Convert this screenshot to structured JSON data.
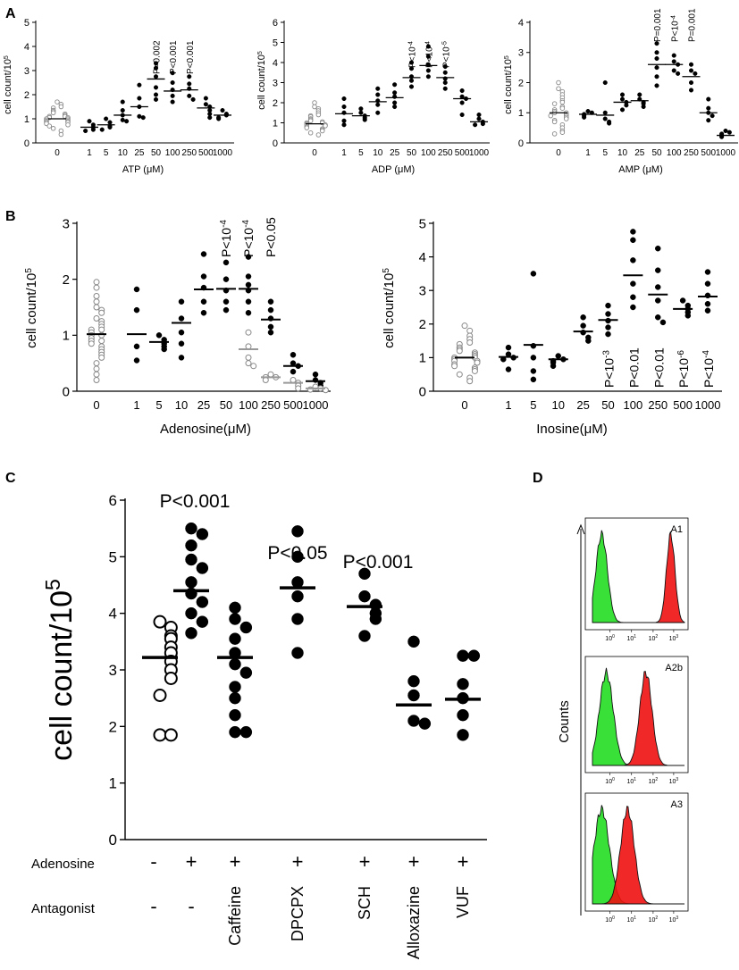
{
  "panel_labels": [
    "A",
    "B",
    "C",
    "D"
  ],
  "chart_data": [
    {
      "id": "A-ATP",
      "type": "scatter",
      "xlabel": "ATP (μM)",
      "ylabel": "cell count/10",
      "ylabel_sup": "5",
      "ylim": [
        0,
        5
      ],
      "yticks": [
        "0",
        "1",
        "2",
        "3",
        "4",
        "5"
      ],
      "categories": [
        "0",
        "1",
        "5",
        "10",
        "25",
        "50",
        "100",
        "250",
        "500",
        "1000"
      ],
      "means": [
        1.0,
        0.65,
        0.75,
        1.15,
        1.5,
        2.65,
        2.15,
        2.2,
        1.45,
        1.15
      ],
      "points": [
        [
          1.7,
          1.6,
          1.5,
          1.45,
          1.35,
          1.3,
          1.25,
          1.2,
          1.15,
          1.1,
          1.1,
          1.05,
          1.05,
          1.0,
          1.0,
          0.95,
          0.95,
          0.9,
          0.9,
          0.85,
          0.85,
          0.8,
          0.75,
          0.7,
          0.6,
          0.5,
          0.35
        ],
        [
          0.9,
          0.75,
          0.65,
          0.55,
          0.5
        ],
        [
          1.0,
          0.85,
          0.7,
          0.65,
          0.55
        ],
        [
          1.7,
          1.35,
          1.15,
          0.95,
          0.9
        ],
        [
          2.4,
          1.85,
          1.5,
          1.1,
          1.05
        ],
        [
          3.3,
          3.1,
          2.75,
          2.3,
          2.0,
          1.8
        ],
        [
          2.9,
          2.5,
          2.2,
          1.95,
          1.7
        ],
        [
          2.75,
          2.45,
          2.25,
          1.95,
          1.8
        ],
        [
          1.85,
          1.6,
          1.5,
          1.35,
          1.2,
          1.05
        ],
        [
          1.35,
          1.2,
          1.15,
          1.05,
          1.0
        ]
      ],
      "open_categories": [
        0
      ],
      "annotations": [
        {
          "category": "50",
          "text": "P=0.002"
        },
        {
          "category": "100",
          "text": "P<0.001"
        },
        {
          "category": "250",
          "text": "P<0.001"
        }
      ]
    },
    {
      "id": "A-ADP",
      "type": "scatter",
      "xlabel": "ADP (μM)",
      "ylabel": "cell count/10",
      "ylabel_sup": "5",
      "ylim": [
        0,
        6
      ],
      "yticks": [
        "0",
        "1",
        "2",
        "3",
        "4",
        "5",
        "6"
      ],
      "categories": [
        "0",
        "1",
        "5",
        "10",
        "25",
        "50",
        "100",
        "250",
        "500",
        "1000"
      ],
      "means": [
        0.95,
        1.45,
        1.35,
        2.05,
        2.25,
        3.25,
        3.85,
        3.25,
        2.2,
        1.05
      ],
      "points": [
        [
          2.0,
          1.8,
          1.7,
          1.6,
          1.5,
          1.4,
          1.35,
          1.3,
          1.2,
          1.15,
          1.1,
          1.05,
          1.0,
          1.0,
          0.95,
          0.9,
          0.9,
          0.85,
          0.8,
          0.75,
          0.7,
          0.65,
          0.6,
          0.5,
          0.4
        ],
        [
          2.2,
          1.8,
          1.5,
          1.1,
          0.9
        ],
        [
          1.7,
          1.5,
          1.35,
          1.25,
          1.15
        ],
        [
          2.7,
          2.4,
          2.1,
          1.9,
          1.5
        ],
        [
          2.9,
          2.5,
          2.3,
          2.0,
          1.8
        ],
        [
          4.0,
          3.7,
          3.3,
          3.1,
          2.8
        ],
        [
          4.8,
          4.3,
          3.9,
          3.6,
          3.3
        ],
        [
          3.8,
          3.5,
          3.2,
          3.0,
          2.7
        ],
        [
          2.6,
          2.3,
          2.2,
          2.0,
          1.4
        ],
        [
          1.4,
          1.2,
          1.05,
          0.95,
          0.9
        ]
      ],
      "open_categories": [
        0
      ],
      "annotations": [
        {
          "category": "50",
          "text": "P<10",
          "sup": "-4"
        },
        {
          "category": "100",
          "text": "P<10",
          "sup": "-4"
        },
        {
          "category": "250",
          "text": "P<10",
          "sup": "-5"
        }
      ]
    },
    {
      "id": "A-AMP",
      "type": "scatter",
      "xlabel": "AMP (μM)",
      "ylabel": "cell count/10",
      "ylabel_sup": "5",
      "ylim": [
        0,
        4
      ],
      "yticks": [
        "0",
        "1",
        "2",
        "3",
        "4"
      ],
      "categories": [
        "0",
        "1",
        "5",
        "10",
        "25",
        "50",
        "100",
        "250",
        "500",
        "1000"
      ],
      "means": [
        1.0,
        0.95,
        0.92,
        1.35,
        1.4,
        2.6,
        2.6,
        2.2,
        1.0,
        0.25
      ],
      "points": [
        [
          2.0,
          1.8,
          1.7,
          1.6,
          1.5,
          1.4,
          1.35,
          1.3,
          1.2,
          1.15,
          1.1,
          1.05,
          1.0,
          1.0,
          0.95,
          0.9,
          0.9,
          0.85,
          0.8,
          0.75,
          0.7,
          0.6,
          0.5,
          0.4,
          0.35,
          0.3
        ],
        [
          1.05,
          1.0,
          0.95,
          0.9,
          0.85
        ],
        [
          2.0,
          1.0,
          0.8,
          0.7,
          0.65
        ],
        [
          1.6,
          1.45,
          1.35,
          1.25,
          1.1
        ],
        [
          1.6,
          1.45,
          1.35,
          1.3,
          1.2
        ],
        [
          3.3,
          3.0,
          2.8,
          2.5,
          2.2,
          1.9
        ],
        [
          2.9,
          2.7,
          2.6,
          2.4,
          2.3
        ],
        [
          2.6,
          2.4,
          2.3,
          2.0,
          1.75
        ],
        [
          1.45,
          1.15,
          1.0,
          0.9,
          0.75
        ],
        [
          0.4,
          0.35,
          0.3,
          0.25,
          0.2
        ]
      ],
      "open_categories": [
        0
      ],
      "annotations": [
        {
          "category": "50",
          "text": "P=0.001"
        },
        {
          "category": "100",
          "text": "P<10",
          "sup": "-4"
        },
        {
          "category": "250",
          "text": "P=0.001"
        }
      ]
    },
    {
      "id": "B-Adenosine",
      "type": "scatter",
      "xlabel": "Adenosine(μM)",
      "ylabel": "cell count/10",
      "ylabel_sup": "5",
      "ylim": [
        0,
        3
      ],
      "yticks": [
        "0",
        "1",
        "2",
        "3"
      ],
      "categories": [
        "0",
        "1",
        "5",
        "10",
        "25",
        "50",
        "100",
        "250",
        "500",
        "1000"
      ],
      "means": [
        1.02,
        1.02,
        0.88,
        1.22,
        1.82,
        1.83,
        1.83,
        1.28,
        0.45,
        0.18
      ],
      "means_grey": [
        null,
        null,
        null,
        null,
        null,
        null,
        0.75,
        0.25,
        0.15,
        0.05
      ],
      "points": [
        [
          1.95,
          1.85,
          1.7,
          1.6,
          1.5,
          1.45,
          1.4,
          1.3,
          1.25,
          1.2,
          1.15,
          1.1,
          1.1,
          1.05,
          1.0,
          1.0,
          0.95,
          0.9,
          0.9,
          0.85,
          0.8,
          0.75,
          0.7,
          0.65,
          0.6,
          0.5,
          0.4,
          0.3,
          0.2
        ],
        [
          1.82,
          1.45,
          0.8,
          0.55
        ],
        [
          1.0,
          0.92,
          0.85,
          0.8,
          0.75
        ],
        [
          1.6,
          1.3,
          1.05,
          0.85,
          0.6
        ],
        [
          2.45,
          2.05,
          1.85,
          1.6,
          1.4
        ],
        [
          2.3,
          2.0,
          1.8,
          1.6,
          1.45
        ],
        [
          2.4,
          2.05,
          1.9,
          1.8,
          1.6,
          1.4
        ],
        [
          1.6,
          1.45,
          1.3,
          1.15,
          1.05
        ],
        [
          0.65,
          0.5,
          0.45,
          0.35
        ],
        [
          0.3,
          0.2,
          0.15,
          0.1
        ]
      ],
      "grey_points": [
        [],
        [],
        [],
        [],
        [],
        [],
        [
          1.05,
          0.8,
          0.6,
          0.5,
          0.45
        ],
        [
          0.3,
          0.25,
          0.25,
          0.2
        ],
        [
          0.2,
          0.15,
          0.1,
          0.05
        ],
        [
          0.08,
          0.05,
          0.03,
          0.02
        ]
      ],
      "open_categories": [
        0
      ],
      "annotations": [
        {
          "category": "50",
          "text": "P<10",
          "sup": "-4"
        },
        {
          "category": "100",
          "text": "P<10",
          "sup": "-4"
        },
        {
          "category": "250",
          "text": "P<0.05"
        }
      ]
    },
    {
      "id": "B-Inosine",
      "type": "scatter",
      "xlabel": "Inosine(μM)",
      "ylabel": "cell count/10",
      "ylabel_sup": "5",
      "ylim": [
        0,
        5
      ],
      "yticks": [
        "0",
        "1",
        "2",
        "3",
        "4",
        "5"
      ],
      "categories": [
        "0",
        "1",
        "5",
        "10",
        "25",
        "50",
        "100",
        "250",
        "500",
        "1000"
      ],
      "means": [
        1.0,
        1.02,
        1.38,
        0.95,
        1.78,
        2.12,
        3.45,
        2.88,
        2.45,
        2.82
      ],
      "points": [
        [
          1.95,
          1.8,
          1.65,
          1.55,
          1.45,
          1.4,
          1.3,
          1.25,
          1.2,
          1.15,
          1.1,
          1.05,
          1.0,
          1.0,
          0.95,
          0.9,
          0.9,
          0.85,
          0.8,
          0.75,
          0.7,
          0.65,
          0.6,
          0.5,
          0.4,
          0.3
        ],
        [
          1.3,
          1.1,
          1.0,
          0.95,
          0.65
        ],
        [
          3.5,
          1.35,
          1.0,
          0.6,
          0.35
        ],
        [
          1.05,
          0.95,
          0.9,
          0.85,
          0.75
        ],
        [
          2.2,
          1.95,
          1.75,
          1.6,
          1.5
        ],
        [
          2.55,
          2.3,
          2.1,
          1.9,
          1.7
        ],
        [
          4.75,
          4.5,
          3.9,
          3.2,
          2.8,
          2.5
        ],
        [
          4.25,
          3.6,
          3.1,
          2.7,
          2.2,
          2.05
        ],
        [
          2.7,
          2.55,
          2.45,
          2.35,
          2.25
        ],
        [
          3.55,
          3.2,
          2.85,
          2.6,
          2.4
        ]
      ],
      "open_categories": [
        0
      ],
      "annotations": [
        {
          "category": "50",
          "text": "P<10",
          "sup": "-3"
        },
        {
          "category": "100",
          "text": "P<0.01"
        },
        {
          "category": "250",
          "text": "P<0.01"
        },
        {
          "category": "500",
          "text": "P<10",
          "sup": "-6"
        },
        {
          "category": "1000",
          "text": "P<10",
          "sup": "-4"
        }
      ]
    },
    {
      "id": "C-Antagonists",
      "type": "scatter",
      "ylabel": "cell count/10",
      "ylabel_sup": "5",
      "ylim": [
        0,
        6
      ],
      "yticks": [
        "0",
        "1",
        "2",
        "3",
        "4",
        "5",
        "6"
      ],
      "row_labels": [
        "Adenosine",
        "Antagonist"
      ],
      "adenosine_row": [
        "-",
        "+",
        "+",
        "+",
        "+",
        "+",
        "+"
      ],
      "antagonist_row": [
        "-",
        "-",
        "Caffeine",
        "DPCPX",
        "SCH",
        "Alloxazine",
        "VUF"
      ],
      "means": [
        3.22,
        4.4,
        3.22,
        4.45,
        4.12,
        2.38,
        2.48
      ],
      "points": [
        [
          3.85,
          3.75,
          3.6,
          3.55,
          3.4,
          3.3,
          3.15,
          3.0,
          2.85,
          2.55,
          1.85,
          1.85
        ],
        [
          5.5,
          5.4,
          5.2,
          4.95,
          4.8,
          4.55,
          4.35,
          4.2,
          4.0,
          3.85,
          3.65
        ],
        [
          4.1,
          3.9,
          3.75,
          3.55,
          3.3,
          3.1,
          2.95,
          2.7,
          2.5,
          2.2,
          1.9,
          1.9
        ],
        [
          5.45,
          5.0,
          4.55,
          4.3,
          3.9,
          3.3
        ],
        [
          4.7,
          4.3,
          4.15,
          4.0,
          3.9,
          3.6
        ],
        [
          3.5,
          2.8,
          2.55,
          2.1,
          2.05
        ],
        [
          3.25,
          3.25,
          2.75,
          2.5,
          2.2,
          1.85
        ]
      ],
      "open_categories": [
        0
      ],
      "annotations": [
        {
          "category_index": 1,
          "text": "P<0.001"
        },
        {
          "category_index": 3,
          "text": "P<0.05"
        },
        {
          "category_index": 4,
          "text": "P<0.001"
        }
      ]
    },
    {
      "id": "D-Histograms",
      "type": "area",
      "ylabel": "Counts",
      "xticks": [
        "10",
        "10",
        "10",
        "10"
      ],
      "xtick_sups": [
        "0",
        "1",
        "2",
        "3"
      ],
      "panels": [
        {
          "label": "A1",
          "green_peak": 0.1,
          "red_peak": 0.85,
          "green_width": 0.15,
          "red_width": 0.11
        },
        {
          "label": "A2b",
          "green_peak": 0.15,
          "red_peak": 0.58,
          "green_width": 0.18,
          "red_width": 0.16
        },
        {
          "label": "A3",
          "green_peak": 0.1,
          "red_peak": 0.38,
          "green_width": 0.2,
          "red_width": 0.18
        }
      ],
      "colors": {
        "green": "#22dd22",
        "red": "#ee1111",
        "outline": "#111111"
      }
    }
  ]
}
